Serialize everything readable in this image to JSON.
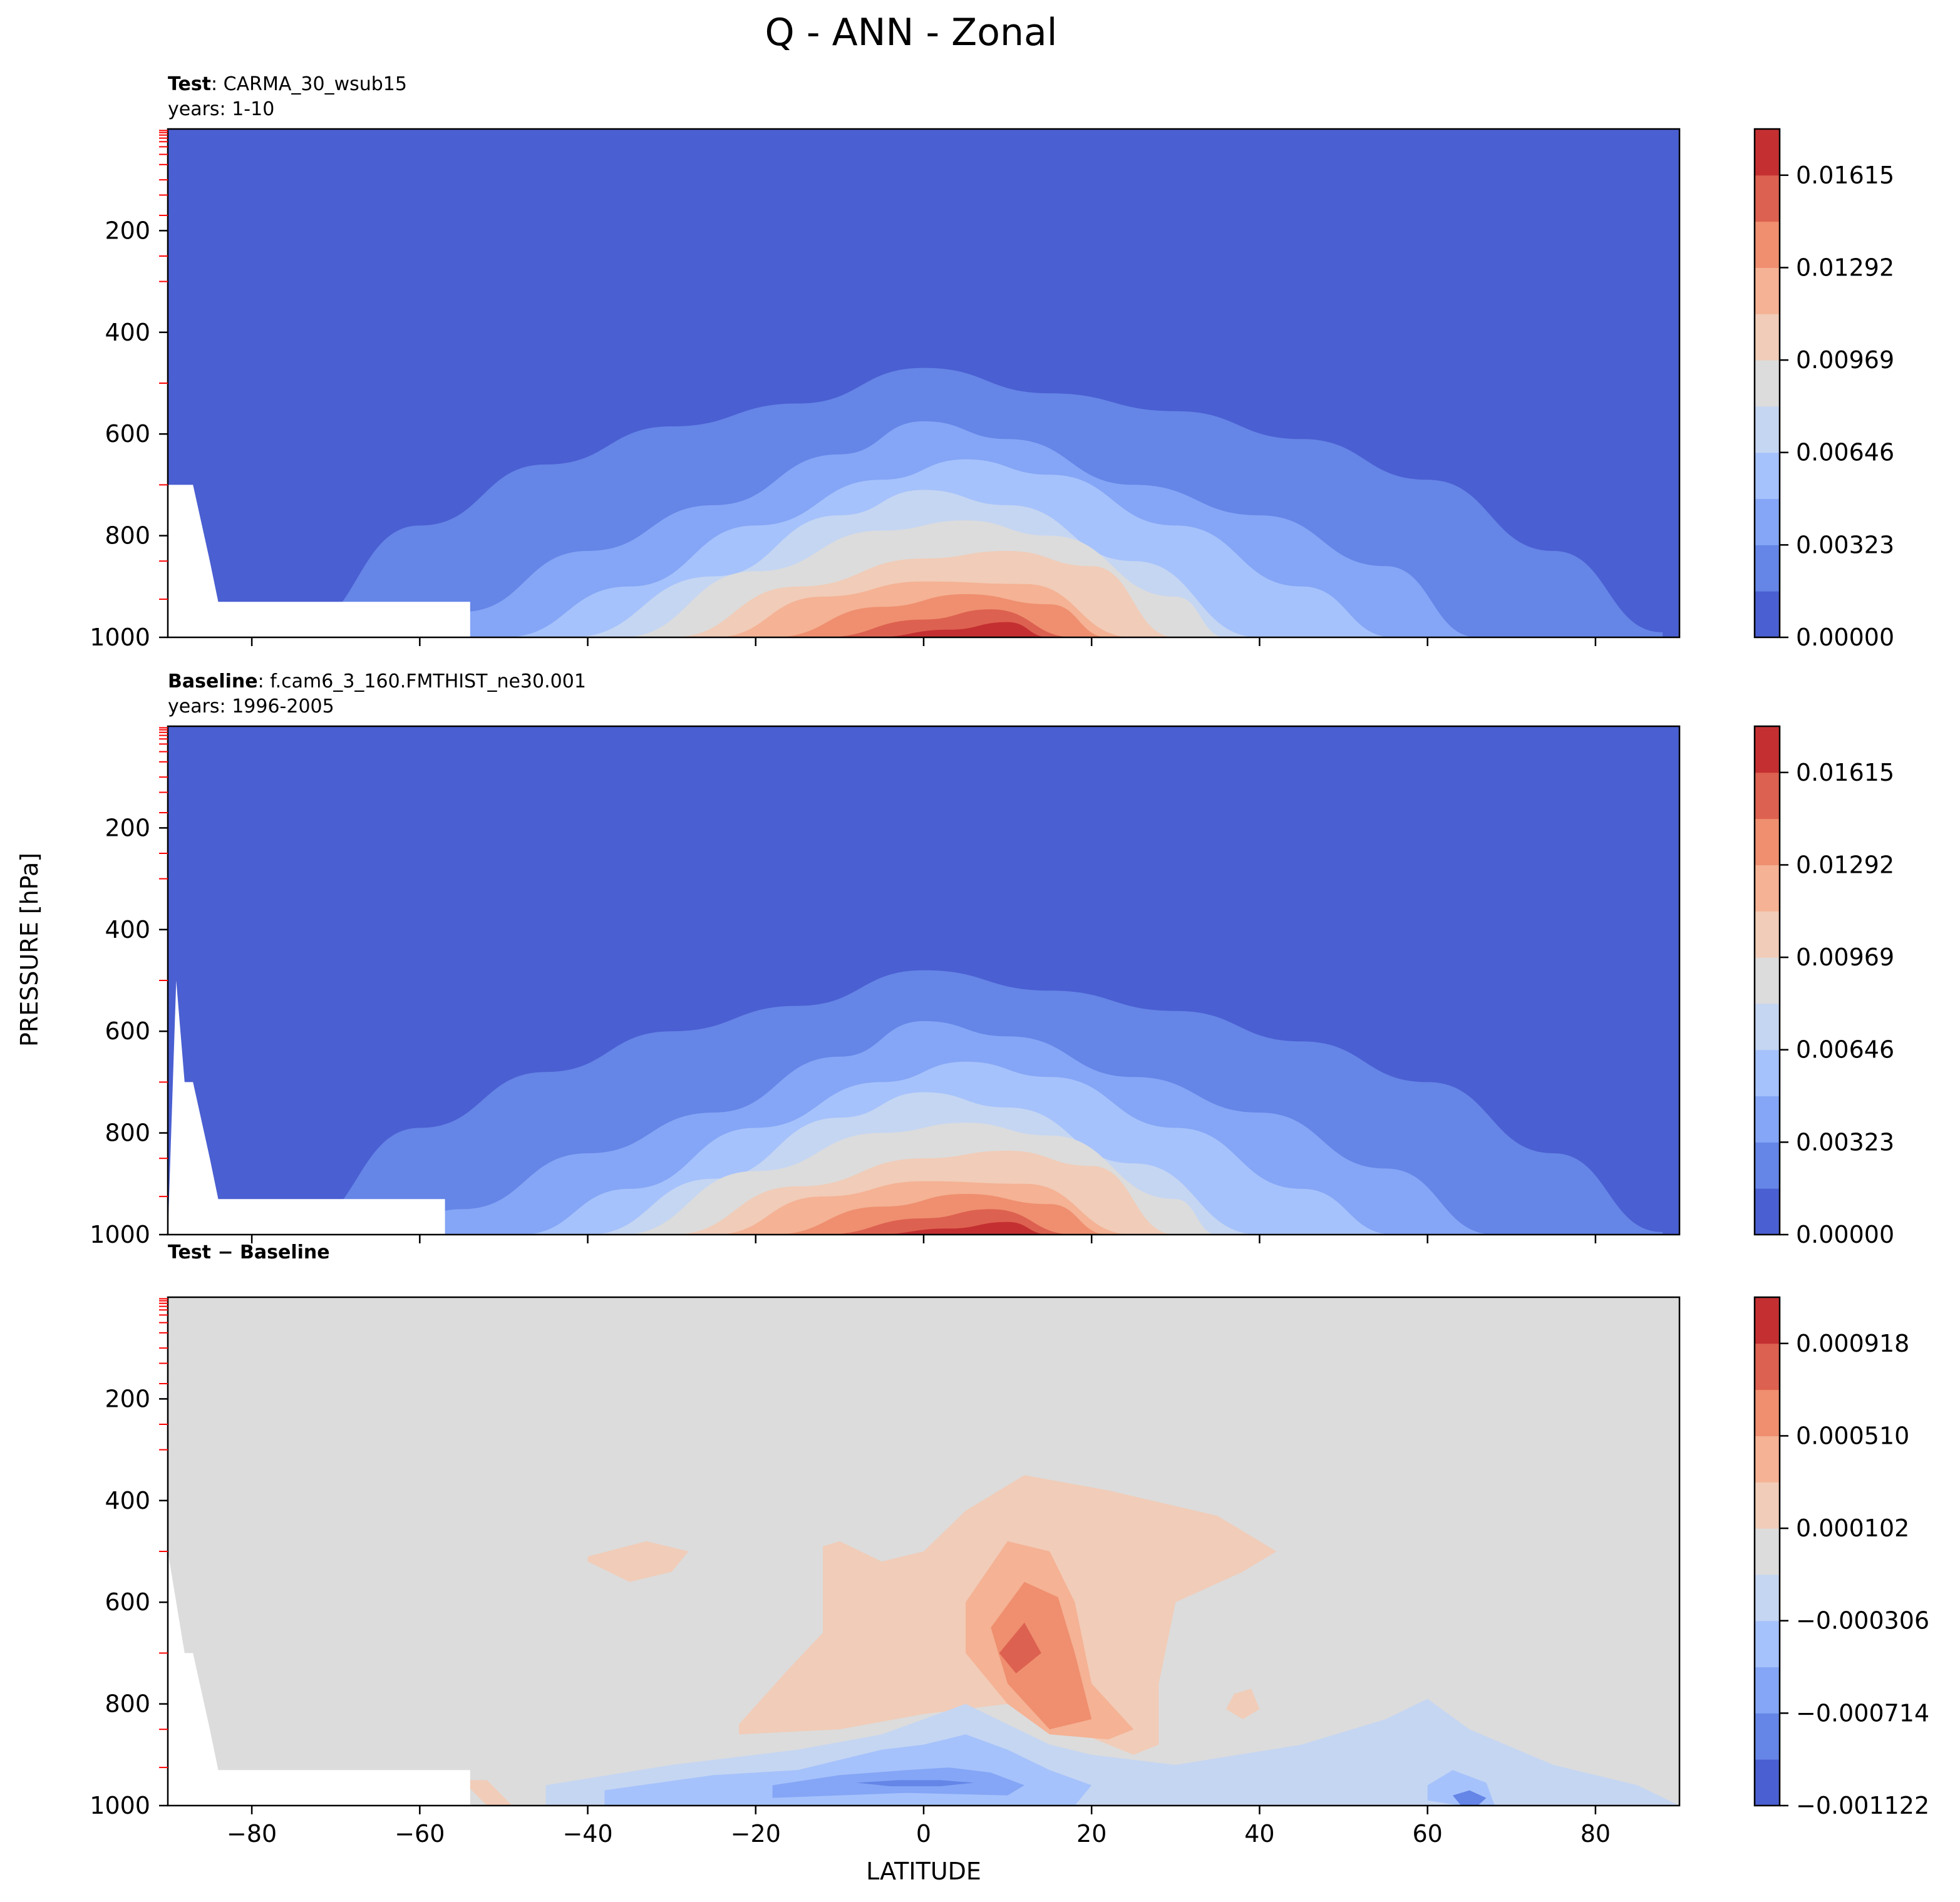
{
  "figure": {
    "title": "Q - ANN - Zonal",
    "ylabel": "PRESSURE [hPa]",
    "xlabel": "LATITUDE"
  },
  "chart_data": [
    {
      "type": "heatmap",
      "title_bold": "Test",
      "title_rest": ": CARMA_30_wsub15",
      "subtitle": "years: 1-10",
      "x": {
        "range": [
          -90,
          90
        ],
        "ticks": [
          -80,
          -60,
          -40,
          -20,
          0,
          20,
          40,
          60,
          80
        ],
        "tick_labels_shown": false
      },
      "y": {
        "range": [
          0,
          1000
        ],
        "inverted": true,
        "ticks": [
          200,
          400,
          600,
          800,
          1000
        ]
      },
      "colorbar": {
        "levels": [
          0.0,
          0.001615,
          0.00323,
          0.004845,
          0.00646,
          0.008075,
          0.00969,
          0.011305,
          0.01292,
          0.014535,
          0.01615,
          0.017765
        ],
        "colors": [
          "#4a5fd1",
          "#6585e7",
          "#85a6f6",
          "#a6c2fc",
          "#c5d6f2",
          "#dcdcdc",
          "#f1ccb8",
          "#f5b294",
          "#ef8f6f",
          "#dd6150",
          "#c43032"
        ],
        "tick_labels": [
          "0.00000",
          "0.00323",
          "0.00646",
          "0.00969",
          "0.01292",
          "0.01615"
        ],
        "tick_values": [
          0.0,
          0.00323,
          0.00646,
          0.00969,
          0.01292,
          0.01615
        ]
      },
      "contours": [
        {
          "level": 1,
          "lat": [
            -88,
            -75,
            -60,
            -45,
            -30,
            -15,
            0,
            15,
            30,
            45,
            60,
            75,
            88
          ],
          "top_p": [
            1000,
            990,
            780,
            660,
            585,
            540,
            470,
            520,
            555,
            610,
            690,
            830,
            990
          ]
        },
        {
          "level": 2,
          "lat": [
            -68,
            -55,
            -40,
            -25,
            -10,
            0,
            10,
            25,
            40,
            55,
            66
          ],
          "top_p": [
            1000,
            950,
            830,
            740,
            640,
            575,
            610,
            700,
            760,
            860,
            1000
          ]
        },
        {
          "level": 3,
          "lat": [
            -50,
            -35,
            -20,
            -5,
            5,
            15,
            30,
            45,
            56
          ],
          "top_p": [
            1000,
            900,
            780,
            690,
            650,
            680,
            780,
            900,
            1000
          ]
        },
        {
          "level": 4,
          "lat": [
            -42,
            -25,
            -10,
            0,
            10,
            25,
            40
          ],
          "top_p": [
            1000,
            880,
            760,
            710,
            740,
            850,
            1000
          ]
        },
        {
          "level": 5,
          "lat": [
            -36,
            -20,
            -5,
            5,
            15,
            30,
            36
          ],
          "top_p": [
            1000,
            870,
            790,
            770,
            800,
            920,
            1000
          ]
        },
        {
          "level": 6,
          "lat": [
            -30,
            -15,
            0,
            10,
            20,
            30
          ],
          "top_p": [
            1000,
            900,
            845,
            830,
            860,
            1000
          ]
        },
        {
          "level": 7,
          "lat": [
            -25,
            -12,
            0,
            12,
            25
          ],
          "top_p": [
            1000,
            920,
            890,
            895,
            1000
          ]
        },
        {
          "level": 8,
          "lat": [
            -18,
            -5,
            5,
            15,
            22
          ],
          "top_p": [
            1000,
            940,
            915,
            935,
            1000
          ]
        },
        {
          "level": 9,
          "lat": [
            -12,
            0,
            8,
            18
          ],
          "top_p": [
            1000,
            965,
            945,
            1000
          ]
        },
        {
          "level": 10,
          "lat": [
            -6,
            3,
            10,
            15
          ],
          "top_p": [
            1000,
            985,
            970,
            1000
          ]
        }
      ],
      "missing": {
        "lat": [
          -90,
          -90,
          -87,
          -85,
          -84,
          -54,
          -54
        ],
        "p": [
          1000,
          700,
          700,
          850,
          930,
          930,
          1000
        ]
      }
    },
    {
      "type": "heatmap",
      "title_bold": "Baseline",
      "title_rest": ": f.cam6_3_160.FMTHIST_ne30.001",
      "subtitle": "years: 1996-2005",
      "x": {
        "range": [
          -90,
          90
        ],
        "ticks": [
          -80,
          -60,
          -40,
          -20,
          0,
          20,
          40,
          60,
          80
        ],
        "tick_labels_shown": false
      },
      "y": {
        "range": [
          0,
          1000
        ],
        "inverted": true,
        "ticks": [
          200,
          400,
          600,
          800,
          1000
        ]
      },
      "colorbar": {
        "levels": [
          0.0,
          0.001615,
          0.00323,
          0.004845,
          0.00646,
          0.008075,
          0.00969,
          0.011305,
          0.01292,
          0.014535,
          0.01615,
          0.017765
        ],
        "colors": [
          "#4a5fd1",
          "#6585e7",
          "#85a6f6",
          "#a6c2fc",
          "#c5d6f2",
          "#dcdcdc",
          "#f1ccb8",
          "#f5b294",
          "#ef8f6f",
          "#dd6150",
          "#c43032"
        ],
        "tick_labels": [
          "0.00000",
          "0.00323",
          "0.00646",
          "0.00969",
          "0.01292",
          "0.01615"
        ],
        "tick_values": [
          0.0,
          0.00323,
          0.00646,
          0.00969,
          0.01292,
          0.01615
        ]
      },
      "contours": [
        {
          "level": 1,
          "lat": [
            -88,
            -75,
            -60,
            -45,
            -30,
            -15,
            0,
            15,
            30,
            45,
            60,
            75,
            88
          ],
          "top_p": [
            1000,
            990,
            790,
            680,
            600,
            550,
            480,
            520,
            560,
            620,
            700,
            840,
            995
          ]
        },
        {
          "level": 2,
          "lat": [
            -65,
            -55,
            -40,
            -25,
            -10,
            0,
            10,
            25,
            40,
            55,
            68
          ],
          "top_p": [
            1000,
            950,
            840,
            760,
            650,
            580,
            610,
            690,
            760,
            870,
            1000
          ]
        },
        {
          "level": 3,
          "lat": [
            -48,
            -35,
            -20,
            -5,
            5,
            15,
            30,
            45,
            56
          ],
          "top_p": [
            1000,
            910,
            790,
            700,
            660,
            690,
            790,
            910,
            1000
          ]
        },
        {
          "level": 4,
          "lat": [
            -40,
            -25,
            -10,
            0,
            10,
            25,
            40
          ],
          "top_p": [
            1000,
            890,
            770,
            720,
            750,
            860,
            1000
          ]
        },
        {
          "level": 5,
          "lat": [
            -36,
            -20,
            -5,
            5,
            15,
            30,
            35
          ],
          "top_p": [
            1000,
            875,
            800,
            780,
            805,
            930,
            1000
          ]
        },
        {
          "level": 6,
          "lat": [
            -30,
            -15,
            0,
            10,
            20,
            30
          ],
          "top_p": [
            1000,
            905,
            850,
            835,
            865,
            1000
          ]
        },
        {
          "level": 7,
          "lat": [
            -25,
            -12,
            0,
            12,
            25
          ],
          "top_p": [
            1000,
            925,
            895,
            900,
            1000
          ]
        },
        {
          "level": 8,
          "lat": [
            -18,
            -5,
            5,
            15,
            22
          ],
          "top_p": [
            1000,
            945,
            920,
            940,
            1000
          ]
        },
        {
          "level": 9,
          "lat": [
            -12,
            0,
            8,
            18
          ],
          "top_p": [
            1000,
            968,
            950,
            1000
          ]
        },
        {
          "level": 10,
          "lat": [
            -6,
            3,
            10,
            15
          ],
          "top_p": [
            1000,
            988,
            975,
            1000
          ]
        }
      ],
      "missing": {
        "lat": [
          -90,
          -89,
          -88,
          -87,
          -85,
          -84,
          -57,
          -57
        ],
        "p": [
          1000,
          500,
          700,
          700,
          850,
          930,
          930,
          1000
        ]
      }
    },
    {
      "type": "heatmap",
      "title_bold": "Test",
      "title_rest": " − Baseline",
      "title_rest_bold": true,
      "subtitle": "",
      "x": {
        "range": [
          -90,
          90
        ],
        "ticks": [
          -80,
          -60,
          -40,
          -20,
          0,
          20,
          40,
          60,
          80
        ],
        "tick_labels_shown": true
      },
      "y": {
        "range": [
          0,
          1000
        ],
        "inverted": true,
        "ticks": [
          200,
          400,
          600,
          800,
          1000
        ]
      },
      "colorbar": {
        "levels": [
          -0.001122,
          -0.000918,
          -0.000714,
          -0.00051,
          -0.000306,
          -0.000102,
          0.000102,
          0.000306,
          0.00051,
          0.000714,
          0.000918,
          0.001122
        ],
        "colors": [
          "#4a5fd1",
          "#6585e7",
          "#85a6f6",
          "#a6c2fc",
          "#c5d6f2",
          "#dcdcdc",
          "#f1ccb8",
          "#f5b294",
          "#ef8f6f",
          "#dd6150",
          "#c43032"
        ],
        "tick_labels": [
          "−0.001122",
          "−0.000714",
          "−0.000306",
          "0.000102",
          "0.000510",
          "0.000918"
        ],
        "tick_values": [
          -0.001122,
          -0.000714,
          -0.000306,
          0.000102,
          0.00051,
          0.000918
        ]
      },
      "background_level": 5,
      "regions": [
        {
          "level": 6,
          "lat": [
            -40,
            -33,
            -28,
            -30,
            -35,
            -40
          ],
          "p": [
            510,
            480,
            500,
            540,
            560,
            520
          ]
        },
        {
          "level": 6,
          "lat": [
            -22,
            -16,
            -12,
            -12,
            -10,
            -5,
            0,
            5,
            12,
            22,
            35,
            42,
            38,
            30,
            28,
            28,
            25,
            10,
            0,
            -10,
            -22
          ],
          "p": [
            840,
            730,
            660,
            490,
            480,
            520,
            500,
            420,
            350,
            380,
            430,
            500,
            540,
            600,
            760,
            880,
            900,
            800,
            820,
            850,
            860
          ]
        },
        {
          "level": 7,
          "lat": [
            5,
            10,
            15,
            18,
            20,
            25,
            22,
            15,
            10,
            5
          ],
          "p": [
            600,
            480,
            500,
            600,
            760,
            850,
            870,
            860,
            800,
            700
          ]
        },
        {
          "level": 8,
          "lat": [
            8,
            12,
            16,
            18,
            20,
            15,
            10
          ],
          "p": [
            650,
            560,
            590,
            700,
            830,
            850,
            760
          ]
        },
        {
          "level": 9,
          "lat": [
            9,
            12,
            14,
            11
          ],
          "p": [
            700,
            640,
            700,
            740
          ]
        },
        {
          "level": 6,
          "lat": [
            37,
            39,
            40,
            38,
            36
          ],
          "p": [
            780,
            770,
            810,
            830,
            810
          ]
        },
        {
          "level": 6,
          "lat": [
            -55,
            -52,
            -49,
            -52
          ],
          "p": [
            950,
            950,
            1000,
            1000
          ]
        },
        {
          "level": 4,
          "lat": [
            -45,
            -30,
            -15,
            -5,
            0,
            5,
            10,
            15,
            20,
            30,
            45,
            55,
            60,
            65,
            75,
            85,
            90,
            90,
            -45
          ],
          "p": [
            960,
            920,
            890,
            860,
            830,
            800,
            840,
            880,
            900,
            920,
            880,
            830,
            790,
            850,
            920,
            960,
            1000,
            1000,
            1000
          ]
        },
        {
          "level": 3,
          "lat": [
            -38,
            -25,
            -15,
            -5,
            0,
            5,
            10,
            15,
            20,
            18,
            -38
          ],
          "p": [
            970,
            940,
            930,
            890,
            880,
            860,
            890,
            930,
            960,
            1000,
            1000
          ]
        },
        {
          "level": 2,
          "lat": [
            -18,
            -10,
            -2,
            3,
            8,
            12,
            10,
            -2,
            -18
          ],
          "p": [
            960,
            940,
            930,
            925,
            935,
            960,
            980,
            975,
            985
          ]
        },
        {
          "level": 1,
          "lat": [
            -8,
            -3,
            2,
            6,
            2,
            -4
          ],
          "p": [
            955,
            950,
            950,
            955,
            962,
            962
          ]
        },
        {
          "level": 3,
          "lat": [
            60,
            63,
            67,
            68,
            64,
            60
          ],
          "p": [
            960,
            930,
            955,
            1000,
            1000,
            990
          ]
        },
        {
          "level": 1,
          "lat": [
            63,
            65,
            67,
            66,
            64
          ],
          "p": [
            980,
            970,
            985,
            1000,
            1000
          ]
        }
      ],
      "missing": {
        "lat": [
          -90,
          -90,
          -88,
          -87,
          -85,
          -84,
          -54,
          -54
        ],
        "p": [
          1000,
          500,
          700,
          700,
          850,
          930,
          930,
          1000
        ]
      }
    }
  ]
}
